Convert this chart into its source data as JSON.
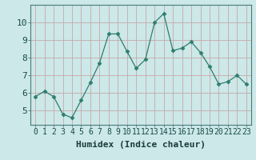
{
  "x": [
    0,
    1,
    2,
    3,
    4,
    5,
    6,
    7,
    8,
    9,
    10,
    11,
    12,
    13,
    14,
    15,
    16,
    17,
    18,
    19,
    20,
    21,
    22,
    23
  ],
  "y": [
    5.8,
    6.1,
    5.8,
    4.8,
    4.6,
    5.6,
    6.6,
    7.7,
    9.35,
    9.35,
    8.35,
    7.4,
    7.9,
    10.0,
    10.5,
    8.4,
    8.55,
    8.9,
    8.3,
    7.5,
    6.5,
    6.65,
    7.0,
    6.5
  ],
  "line_color": "#2e7d6e",
  "marker": "D",
  "marker_size": 2.5,
  "bg_color": "#cce8e8",
  "grid_color": "#c8a8a8",
  "xlabel": "Humidex (Indice chaleur)",
  "xlabel_fontsize": 8,
  "tick_fontsize": 7,
  "ylim": [
    4.2,
    11.0
  ],
  "xlim": [
    -0.5,
    23.5
  ],
  "yticks": [
    5,
    6,
    7,
    8,
    9,
    10
  ],
  "xticks": [
    0,
    1,
    2,
    3,
    4,
    5,
    6,
    7,
    8,
    9,
    10,
    11,
    12,
    13,
    14,
    15,
    16,
    17,
    18,
    19,
    20,
    21,
    22,
    23
  ]
}
